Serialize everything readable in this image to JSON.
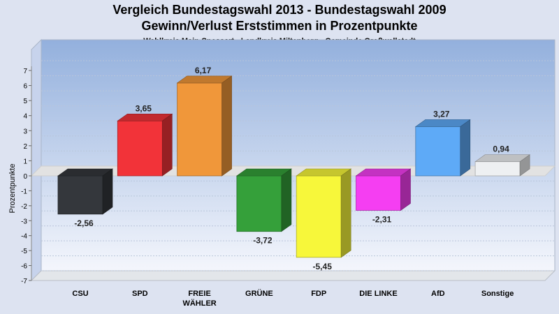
{
  "chart_data": {
    "type": "bar",
    "title": "Vergleich Bundestagswahl 2013 - Bundestagswahl 2009",
    "subtitle": "Gewinn/Verlust Erststimmen in Prozentpunkte",
    "subsubtitle": "Wahlkreis Main-Spessart - Landkreis Miltenberg - Gemeinde Großwallstadt",
    "ylabel": "Prozentpunkte",
    "xlabel": "",
    "ylim": [
      -7,
      7
    ],
    "yticks": [
      "7",
      "6",
      "5",
      "4",
      "3",
      "2",
      "1",
      "0",
      "-1",
      "-2",
      "-3",
      "-4",
      "-5",
      "-6",
      "-7"
    ],
    "categories": [
      "CSU",
      "SPD",
      "FREIE WÄHLER",
      "GRÜNE",
      "FDP",
      "DIE LINKE",
      "AfD",
      "Sonstige"
    ],
    "values": [
      -2.56,
      3.65,
      6.17,
      -3.72,
      -5.45,
      -2.31,
      3.27,
      0.94
    ],
    "value_labels": [
      "-2,56",
      "3,65",
      "6,17",
      "-3,72",
      "-5,45",
      "-2,31",
      "3,27",
      "0,94"
    ],
    "colors": [
      "#34373c",
      "#f23339",
      "#f0973a",
      "#35a03a",
      "#f7f73a",
      "#f53ef2",
      "#5eaaf7",
      "#eef0f2"
    ],
    "grid": true,
    "legend": "none"
  }
}
